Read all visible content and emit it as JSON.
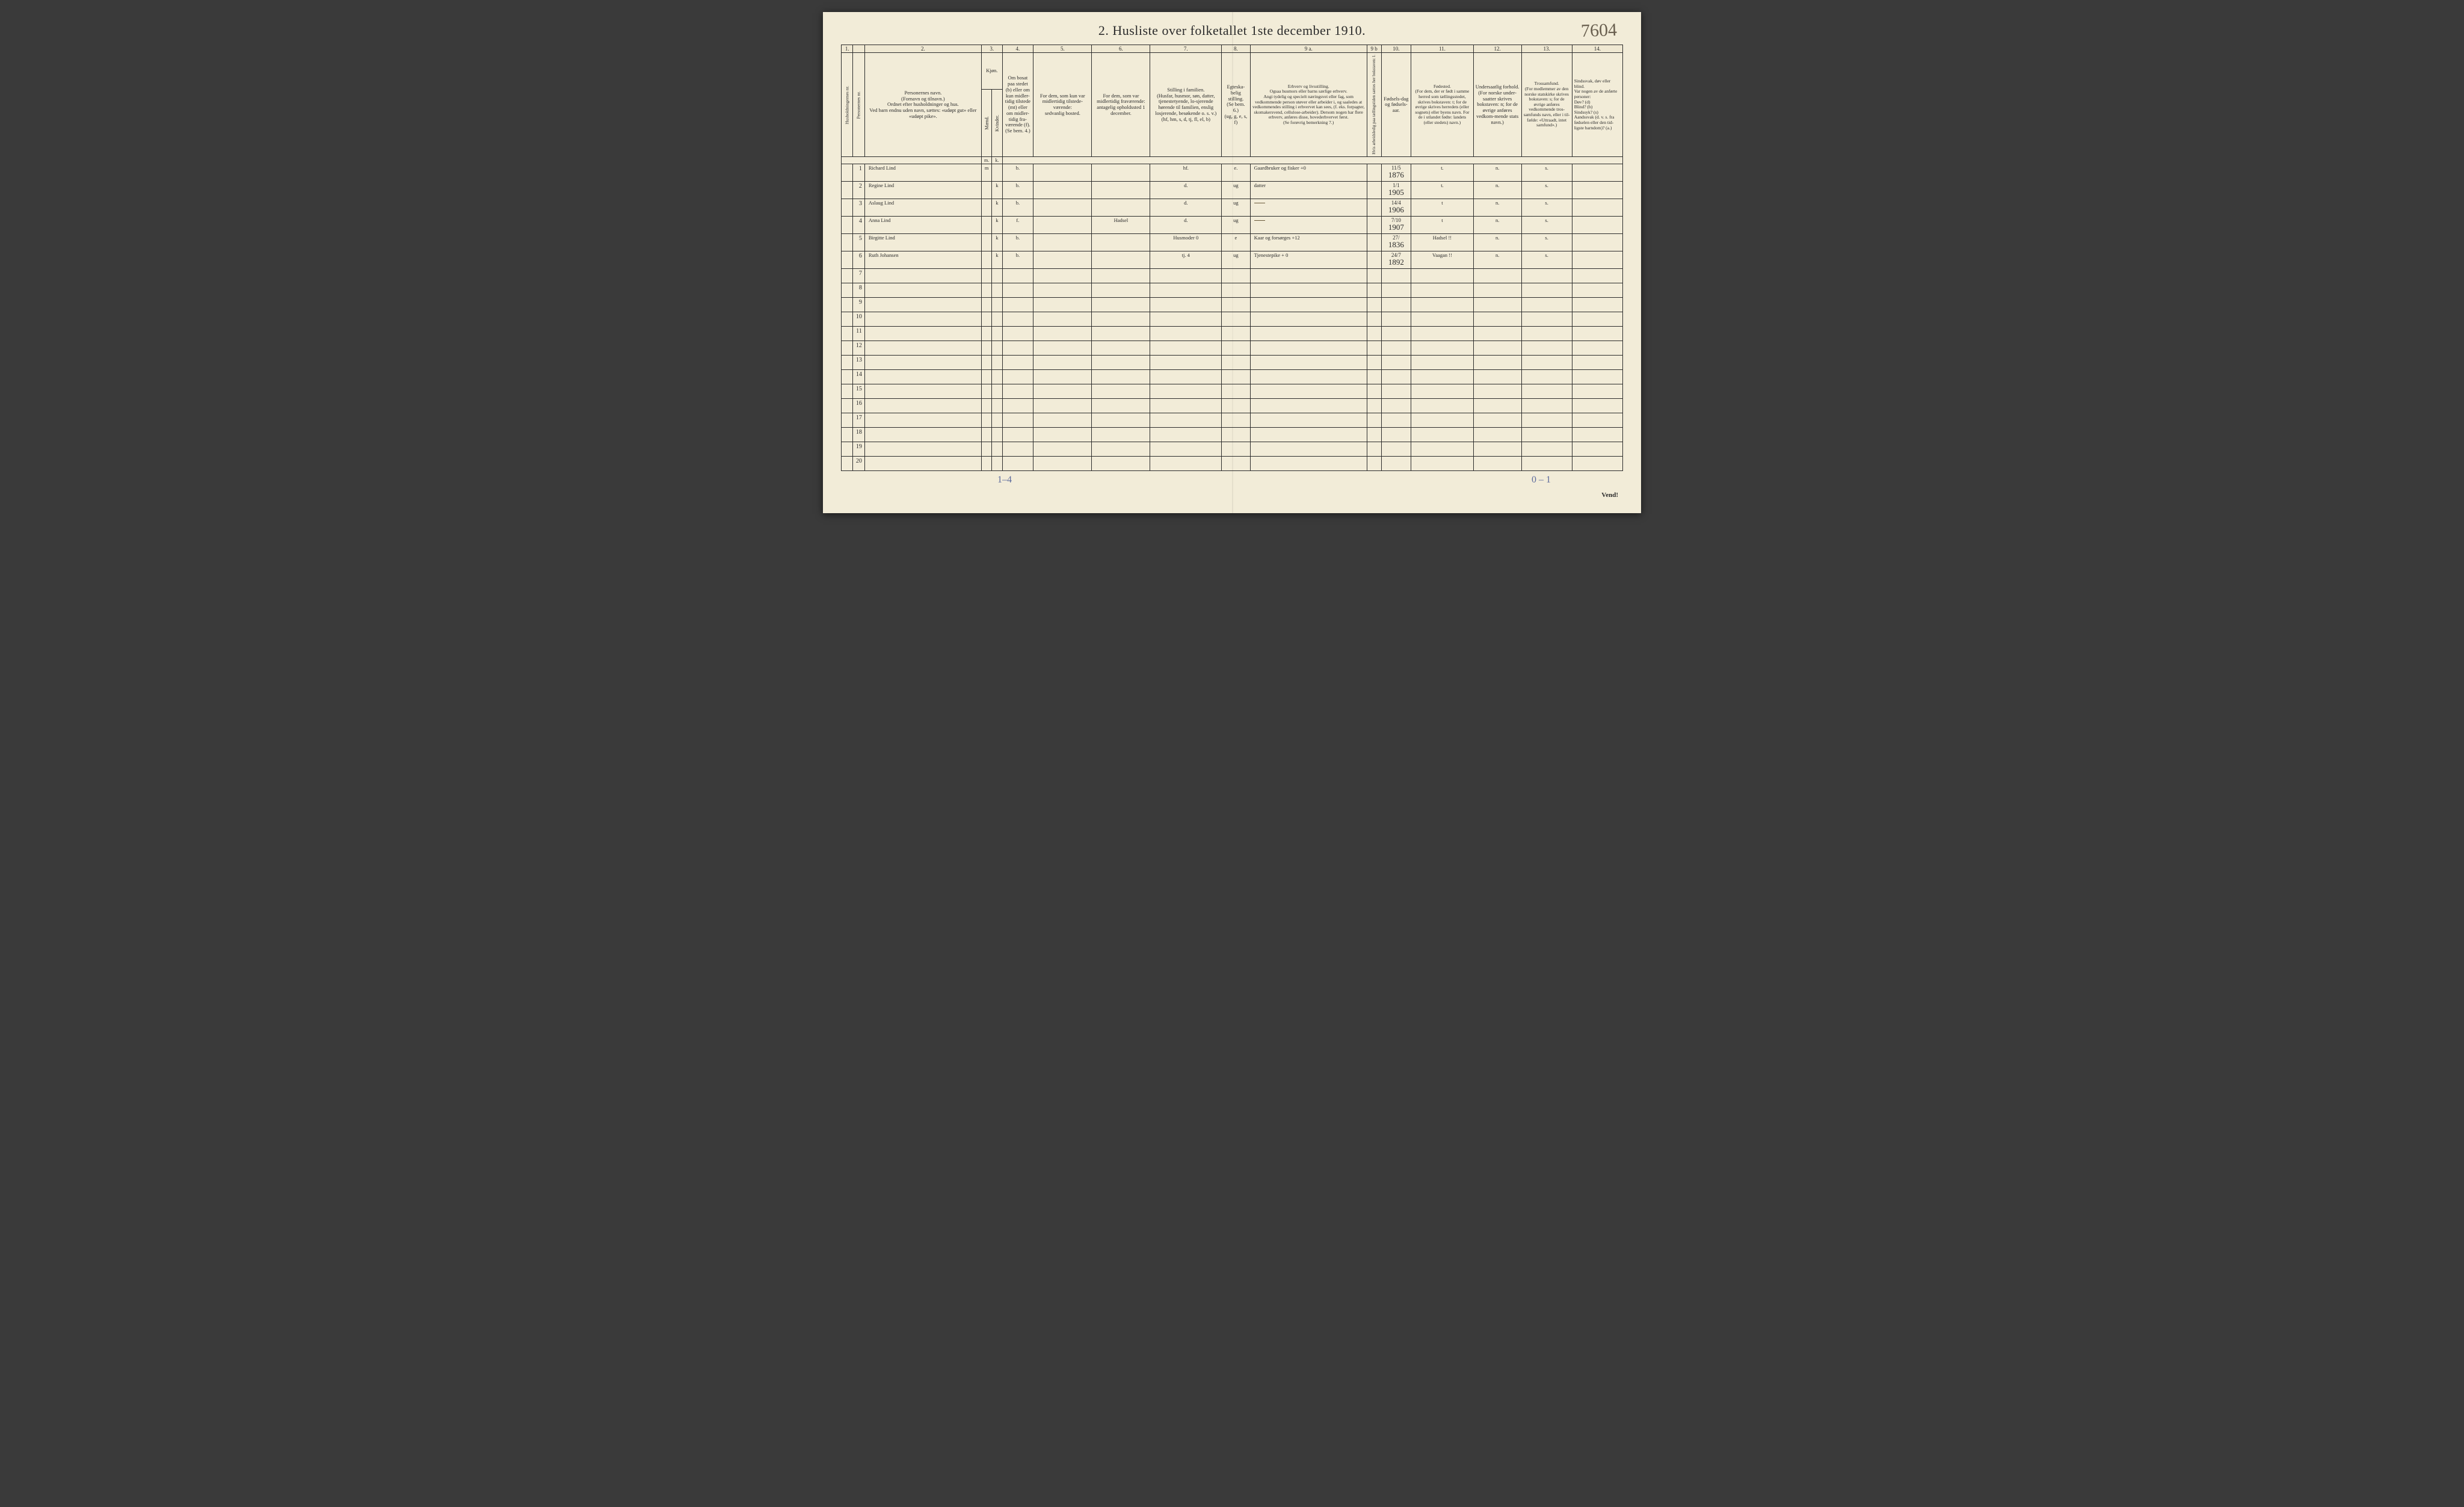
{
  "title": "2.  Husliste over folketallet 1ste december 1910.",
  "handwritten_page_num": "7604",
  "colnums": [
    "1.",
    "",
    "2.",
    "3.",
    "",
    "4.",
    "5.",
    "6.",
    "7.",
    "8.",
    "9 a.",
    "9 b",
    "10.",
    "11.",
    "12.",
    "13.",
    "14."
  ],
  "headers": {
    "h1": "Husholdningernes nr.",
    "h2": "Personernes nr.",
    "h3": "Personernes navn.\n(Fornavn og tilnavn.)\nOrdnet efter husholdninger og hus.\nVed barn endnu uden navn, sættes: «udøpt gut» eller «udøpt pike».",
    "h4": "Kjøn.",
    "h4m": "Mænd.",
    "h4k": "Kvinder.",
    "h5": "Om bosat paa stedet (b) eller om kun midler-tidig tilstede (mt) eller om midler-tidig fra-værende (f). (Se bem. 4.)",
    "h6": "For dem, som kun var midlertidig tilstede-værende:\nsedvanlig bosted.",
    "h7": "For dem, som var midlertidig fraværende:\nantagelig opholdssted 1 december.",
    "h8": "Stilling i familien.\n(Husfar, husmor, søn, datter, tjenestetyende, lo-sjerende hørende til familien, enslig losjerende, besøkende o. s. v.)\n(hf, hm, s, d, tj, fl, el, b)",
    "h9": "Egteska-belig stilling.\n(Se bem. 6.)\n(ug, g, e, s, f)",
    "h10": "Erhverv og livsstilling.\nOgsaa husmors eller barns særlige erhverv.\nAngi tydelig og specielt næringsvei eller fag, som vedkommende person utøver eller arbeider i, og saaledes at vedkommendes stilling i erhvervet kan sees, (f. eks. forpagter, skomakersvend, cellulose-arbeider). Dersom nogen har flere erhverv, anføres disse, hovederhvervet først.\n(Se forøvrig bemerkning 7.)",
    "h10b": "Hvis arbeidsledig paa tællingstiden sættes her bokstaven: l.",
    "h11": "Fødsels-dag og fødsels-aar.",
    "h12": "Fødested.\n(For dem, der er født i samme herred som tællingsstedet, skrives bokstaven: t; for de øvrige skrives herredets (eller sognets) eller byens navn. For de i utlandet fødte: landets (eller stedets) navn.)",
    "h13": "Undersaatlig forhold.\n(For norske under-saatter skrives bokstaven: n; for de øvrige anføres vedkom-mende stats navn.)",
    "h14": "Trossamfund.\n(For medlemmer av den norske statskirke skrives bokstaven: s; for de øvrige anføres vedkommende tros-samfunds navn, eller i til-fælde: «Uttraadt, intet samfund».)",
    "h15": "Sindssvak, døv eller blind.\nVar nogen av de anførte personer:\nDøv?  (d)\nBlind? (b)\nSindssyk? (s)\nAandssvak (d. v. s. fra fødselen eller den tid-ligste barndom)? (a.)",
    "mk_m": "m.",
    "mk_k": "k."
  },
  "rows": [
    {
      "n": "1",
      "name": "Richard Lind",
      "m": "m",
      "k": "",
      "res": "b.",
      "usual": "",
      "away": "",
      "fam": "hf.",
      "mar": "e.",
      "occ": "Gaardbruker og fisker +0",
      "led": "",
      "born_top": "11/5",
      "born": "1876",
      "place": "t.",
      "nat": "n.",
      "rel": "s.",
      "dis": ""
    },
    {
      "n": "2",
      "name": "Regine Lind",
      "m": "",
      "k": "k",
      "res": "b.",
      "usual": "",
      "away": "",
      "fam": "d.",
      "mar": "ug",
      "occ": "datter",
      "led": "",
      "born_top": "1/1",
      "born": "1905",
      "place": "t.",
      "nat": "n.",
      "rel": "s.",
      "dis": ""
    },
    {
      "n": "3",
      "name": "Aslaug Lind",
      "m": "",
      "k": "k",
      "res": "b.",
      "usual": "",
      "away": "",
      "fam": "d.",
      "mar": "ug",
      "occ": "—",
      "led": "",
      "born_top": "14/4",
      "born": "1906",
      "place": "t",
      "nat": "n.",
      "rel": "s.",
      "dis": ""
    },
    {
      "n": "4",
      "name": "Anna Lind",
      "m": "",
      "k": "k",
      "res": "f.",
      "usual": "",
      "away": "Hadsel",
      "fam": "d.",
      "mar": "ug",
      "occ": "—",
      "led": "",
      "born_top": "7/10",
      "born": "1907",
      "place": "t",
      "nat": "n.",
      "rel": "s.",
      "dis": ""
    },
    {
      "n": "5",
      "name": "Birgitte Lind",
      "m": "",
      "k": "k",
      "res": "b.",
      "usual": "",
      "away": "",
      "fam": "Husmoder 0",
      "mar": "e",
      "occ": "Kaar og forsørges +12",
      "led": "",
      "born_top": "27/",
      "born": "1836",
      "place": "Hadsel !!",
      "nat": "n.",
      "rel": "s.",
      "dis": ""
    },
    {
      "n": "6",
      "name": "Ruth Johansen",
      "m": "",
      "k": "k",
      "res": "b.",
      "usual": "",
      "away": "",
      "fam": "tj.  4",
      "mar": "ug",
      "occ": "Tjenestepike   + 0",
      "led": "",
      "born_top": "24/7",
      "born": "1892",
      "place": "Vaagan !!",
      "nat": "n.",
      "rel": "s.",
      "dis": ""
    },
    {
      "n": "7"
    },
    {
      "n": "8"
    },
    {
      "n": "9"
    },
    {
      "n": "10"
    },
    {
      "n": "11"
    },
    {
      "n": "12"
    },
    {
      "n": "13"
    },
    {
      "n": "14"
    },
    {
      "n": "15"
    },
    {
      "n": "16"
    },
    {
      "n": "17"
    },
    {
      "n": "18"
    },
    {
      "n": "19"
    },
    {
      "n": "20"
    }
  ],
  "footer": {
    "left": "1–4",
    "right": "0 – 1"
  },
  "vend": "Vend!",
  "colors": {
    "paper": "#f2ecd8",
    "ink": "#2b2b2b",
    "hand": "#4a4030",
    "pencil_blue": "#5c6a9c"
  }
}
